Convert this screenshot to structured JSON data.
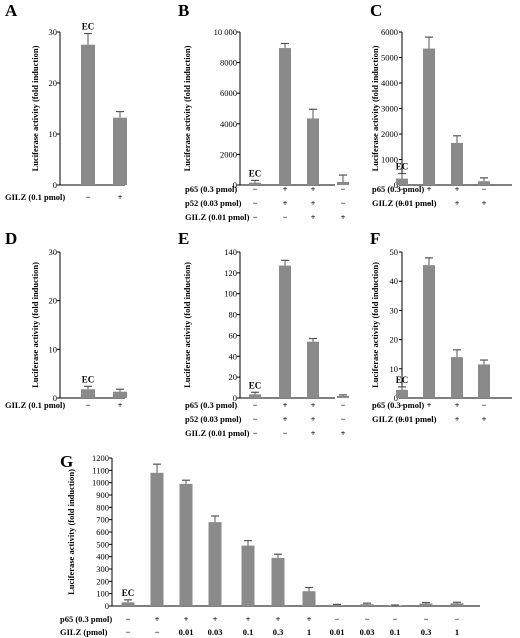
{
  "chart_data": [
    {
      "type": "bar",
      "panel": "A",
      "ylabel": "Luciferase activity (fold induction)",
      "ylim": [
        0,
        30
      ],
      "yticks": [
        0,
        10,
        20,
        30
      ],
      "values": [
        27.5,
        13.2
      ],
      "errors": [
        2.2,
        1.2
      ],
      "bar_labels": [
        "EC",
        ""
      ],
      "conditions": [
        {
          "label": "GILZ (0.1 pmol)",
          "signs": [
            "−",
            "+"
          ]
        }
      ]
    },
    {
      "type": "bar",
      "panel": "B",
      "ylabel": "Luciferase activity (fold induction)",
      "ylim": [
        0,
        10000
      ],
      "yticks": [
        0,
        2000,
        4000,
        6000,
        8000,
        10000
      ],
      "ytick_labels": [
        "0",
        "2000",
        "4000",
        "6000",
        "8000",
        "10 000"
      ],
      "values": [
        150,
        8950,
        4350,
        200
      ],
      "errors": [
        150,
        300,
        600,
        450
      ],
      "bar_labels": [
        "EC",
        "",
        "",
        ""
      ],
      "conditions": [
        {
          "label": "p65 (0.3 pmol)",
          "signs": [
            "−",
            "+",
            "+",
            "−"
          ]
        },
        {
          "label": "p52 (0.03 pmol)",
          "signs": [
            "−",
            "+",
            "+",
            "−"
          ]
        },
        {
          "label": "GILZ (0.01 pmol)",
          "signs": [
            "−",
            "−",
            "+",
            "+"
          ]
        }
      ]
    },
    {
      "type": "bar",
      "panel": "C",
      "ylabel": "Luciferase activity (fold induction)",
      "ylim": [
        0,
        6000
      ],
      "yticks": [
        0,
        1000,
        2000,
        3000,
        4000,
        5000,
        6000
      ],
      "values": [
        250,
        5350,
        1650,
        150
      ],
      "errors": [
        200,
        450,
        280,
        130
      ],
      "bar_labels": [
        "EC",
        "",
        "",
        ""
      ],
      "conditions": [
        {
          "label": "p65 (0.3 pmol)",
          "signs": [
            "−",
            "+",
            "+",
            "−"
          ]
        },
        {
          "label": "GILZ (0.01 pmol)",
          "signs": [
            "−",
            "−",
            "+",
            "+"
          ]
        }
      ]
    },
    {
      "type": "bar",
      "panel": "D",
      "ylabel": "Luciferase activity (fold induction)",
      "ylim": [
        0,
        30
      ],
      "yticks": [
        0,
        10,
        20,
        30
      ],
      "values": [
        1.8,
        1.3
      ],
      "errors": [
        0.6,
        0.5
      ],
      "bar_labels": [
        "EC",
        ""
      ],
      "conditions": [
        {
          "label": "GILZ (0.1 pmol)",
          "signs": [
            "−",
            "+"
          ]
        }
      ]
    },
    {
      "type": "bar",
      "panel": "E",
      "ylabel": "Luciferase activity (fold induction)",
      "ylim": [
        0,
        140
      ],
      "yticks": [
        0,
        20,
        40,
        60,
        80,
        100,
        120,
        140
      ],
      "values": [
        3.5,
        127,
        54,
        2
      ],
      "errors": [
        2,
        5,
        3,
        1
      ],
      "bar_labels": [
        "EC",
        "",
        "",
        ""
      ],
      "conditions": [
        {
          "label": "p65 (0.3 pmol)",
          "signs": [
            "−",
            "+",
            "+",
            "−"
          ]
        },
        {
          "label": "p52 (0.03 pmol)",
          "signs": [
            "−",
            "+",
            "+",
            "−"
          ]
        },
        {
          "label": "GILZ (0.01 pmol)",
          "signs": [
            "−",
            "−",
            "+",
            "+"
          ]
        }
      ]
    },
    {
      "type": "bar",
      "panel": "F",
      "ylabel": "Luciferase activity (fold induction)",
      "ylim": [
        0,
        50
      ],
      "yticks": [
        0,
        10,
        20,
        30,
        40,
        50
      ],
      "values": [
        2.8,
        45.5,
        14,
        11.5
      ],
      "errors": [
        1,
        2.5,
        2.5,
        1.5
      ],
      "bar_labels": [
        "EC",
        "",
        "",
        ""
      ],
      "conditions": [
        {
          "label": "p65 (0.3 pmol)",
          "signs": [
            "−",
            "+",
            "+",
            "−"
          ]
        },
        {
          "label": "GILZ (0.01 pmol)",
          "signs": [
            "−",
            "−",
            "+",
            "+"
          ]
        }
      ]
    },
    {
      "type": "bar",
      "panel": "G",
      "ylabel": "Luciferase activity (fold induction)",
      "ylim": [
        0,
        1200
      ],
      "yticks": [
        0,
        100,
        200,
        300,
        400,
        500,
        600,
        700,
        800,
        900,
        1000,
        1100,
        1200
      ],
      "values": [
        30,
        1080,
        990,
        680,
        490,
        390,
        120,
        8,
        15,
        5,
        20,
        22
      ],
      "errors": [
        20,
        70,
        30,
        50,
        40,
        30,
        30,
        5,
        8,
        3,
        8,
        8
      ],
      "bar_labels": [
        "EC",
        "",
        "",
        "",
        "",
        "",
        "",
        "",
        "",
        "",
        "",
        ""
      ],
      "conditions": [
        {
          "label": "p65 (0.3 pmol)",
          "signs": [
            "−",
            "+",
            "+",
            "+",
            "+",
            "+",
            "+",
            "−",
            "−",
            "−",
            "−",
            "−"
          ]
        },
        {
          "label": "GILZ (pmol)",
          "signs": [
            "−",
            "−",
            "0.01",
            "0.03",
            "0.1",
            "0.3",
            "1",
            "0.01",
            "0.03",
            "0.1",
            "0.3",
            "1"
          ]
        }
      ]
    }
  ]
}
